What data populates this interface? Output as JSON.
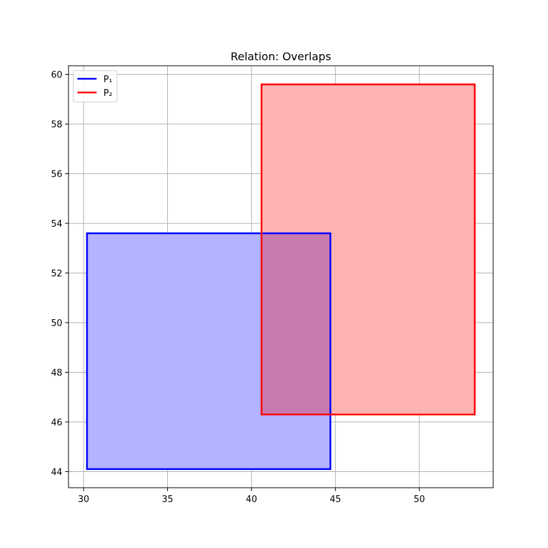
{
  "chart_data": {
    "type": "rectangles",
    "title": "Relation: Overlaps",
    "xlabel": "",
    "ylabel": "",
    "xlim": [
      29.1,
      54.4
    ],
    "ylim": [
      43.35,
      60.35
    ],
    "xticks": [
      30,
      35,
      40,
      45,
      50
    ],
    "yticks": [
      44,
      46,
      48,
      50,
      52,
      54,
      56,
      58,
      60
    ],
    "grid": true,
    "legend": {
      "placement": "top-left"
    },
    "series": [
      {
        "name": "P₁",
        "x0": 30.2,
        "x1": 44.7,
        "y0": 44.1,
        "y1": 53.6,
        "edge_color": "#0000ff",
        "fill_color": "#b3b3ff"
      },
      {
        "name": "P₂",
        "x0": 40.6,
        "x1": 53.3,
        "y0": 46.3,
        "y1": 59.6,
        "edge_color": "#ff0000",
        "fill_color": "#ffb3b3"
      }
    ],
    "overlap_color": "#c87aae"
  }
}
